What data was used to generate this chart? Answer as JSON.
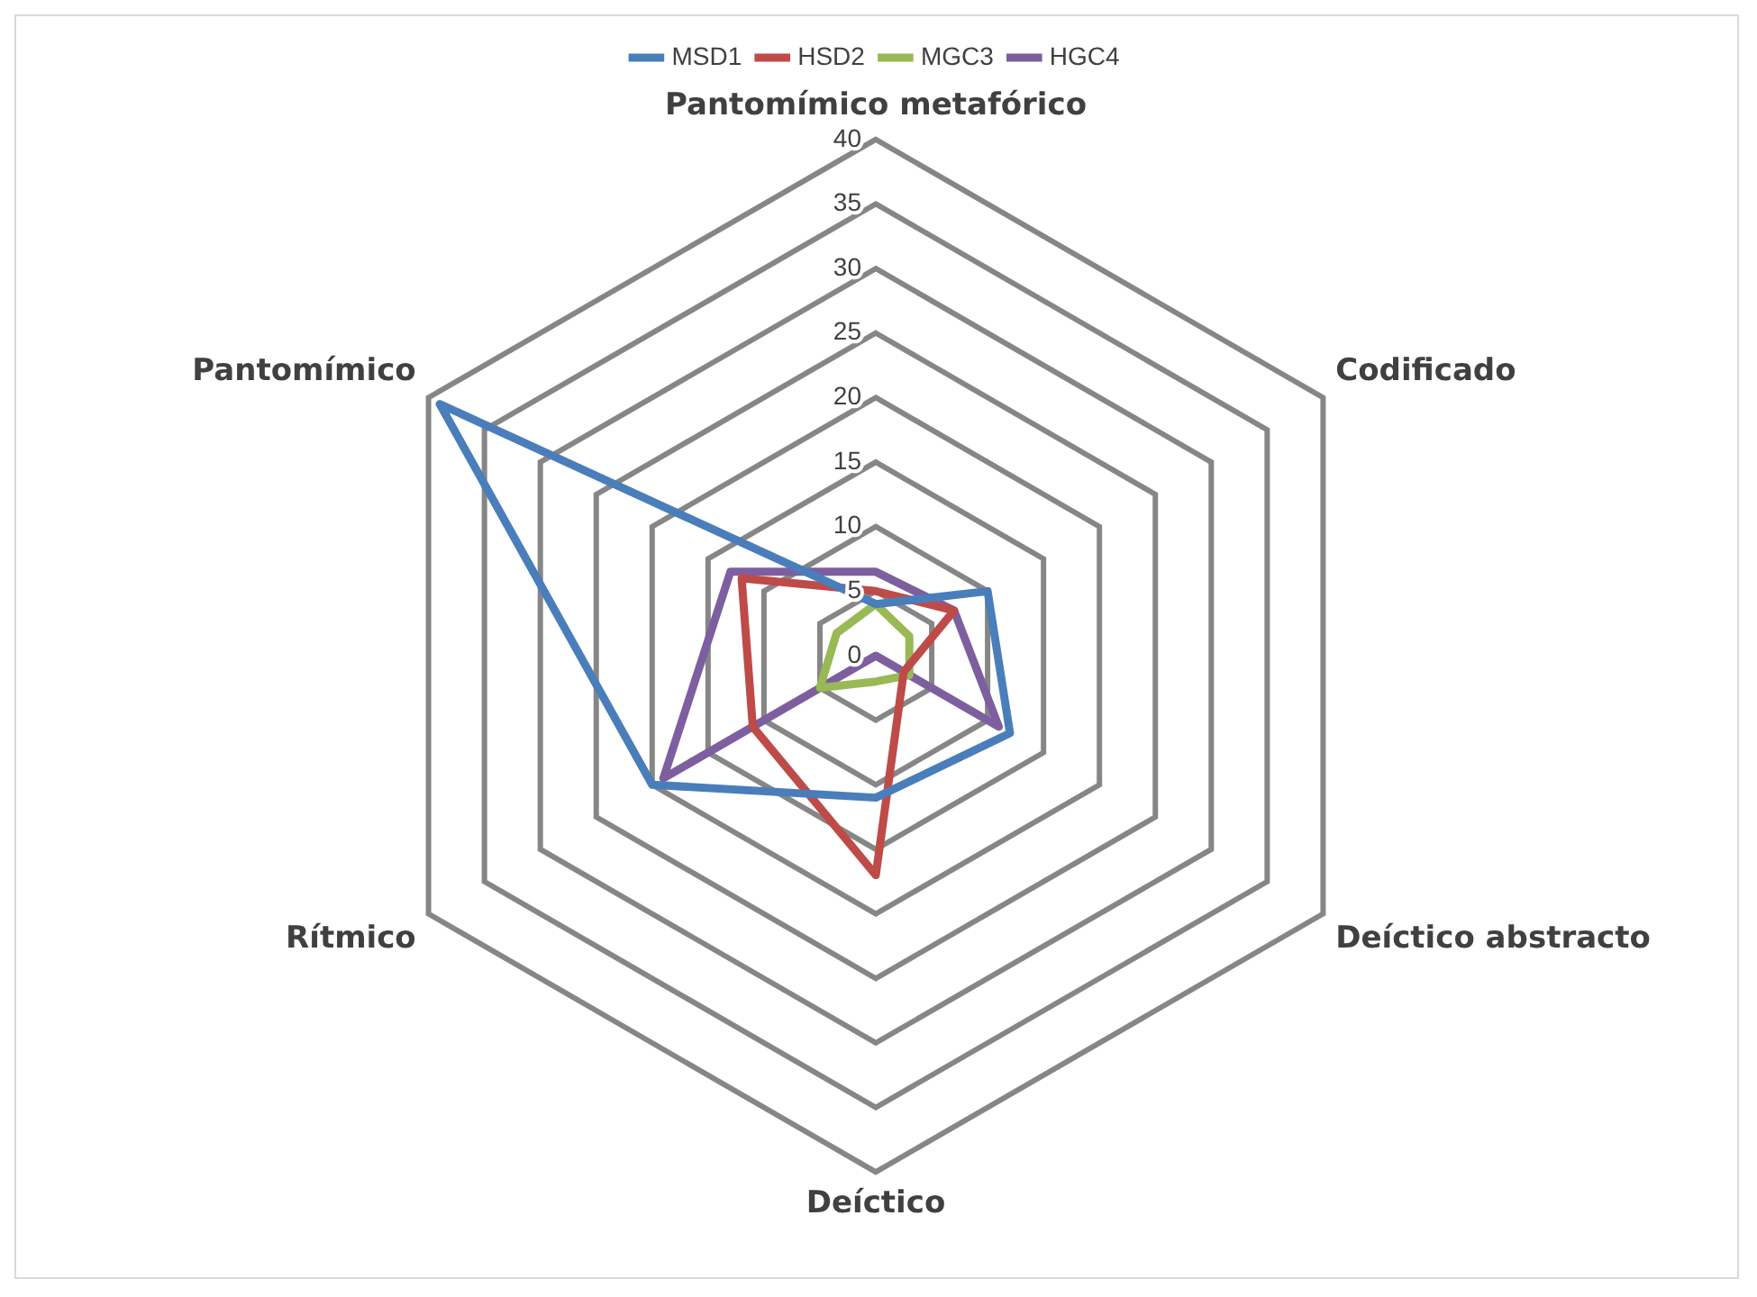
{
  "chart_data": {
    "type": "radar",
    "categories": [
      "Pantomímico metafórico",
      "Codificado",
      "Deíctico abstracto",
      "Deíctico",
      "Rítmico",
      "Pantomímico"
    ],
    "series": [
      {
        "name": "MSD1",
        "color": "#4a7ebb",
        "values": [
          4,
          10,
          12,
          11,
          20,
          39
        ]
      },
      {
        "name": "HSD2",
        "color": "#be4b48",
        "values": [
          5,
          7,
          2.5,
          17,
          11,
          12
        ]
      },
      {
        "name": "MGC3",
        "color": "#98b954",
        "values": [
          4,
          3,
          3,
          2,
          5,
          3.5
        ]
      },
      {
        "name": "HGC4",
        "color": "#7d5fa0",
        "values": [
          6.5,
          7,
          11,
          0,
          19,
          13
        ]
      }
    ],
    "ylim": [
      0,
      40
    ],
    "yticks": [
      0,
      5,
      10,
      15,
      20,
      25,
      30,
      35,
      40
    ],
    "grid": true,
    "legend": "top",
    "marker": "none"
  }
}
